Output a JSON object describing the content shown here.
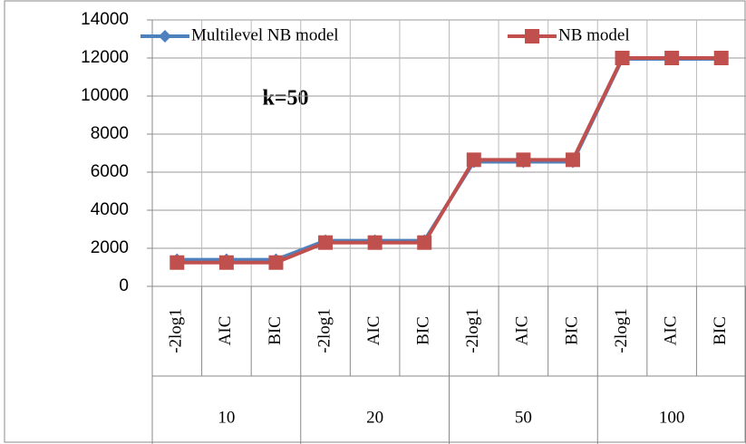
{
  "chart_data": {
    "type": "line",
    "annotation": "k=50",
    "categories": [
      "-2log1",
      "AIC",
      "BIC",
      "-2log1",
      "AIC",
      "BIC",
      "-2log1",
      "AIC",
      "BIC",
      "-2log1",
      "AIC",
      "BIC"
    ],
    "category_groups": [
      "10",
      "20",
      "50",
      "100"
    ],
    "series": [
      {
        "name": "Multilevel  NB model",
        "color": "#4f81bd",
        "marker": "diamond",
        "values": [
          1400,
          1400,
          1400,
          2400,
          2400,
          2400,
          6550,
          6550,
          6550,
          11950,
          11950,
          11950
        ]
      },
      {
        "name": "NB model",
        "color": "#c0504d",
        "marker": "square",
        "values": [
          1250,
          1250,
          1250,
          2300,
          2300,
          2300,
          6650,
          6650,
          6650,
          12000,
          12000,
          12000
        ]
      }
    ],
    "ylim": [
      0,
      14000
    ],
    "yticks": [
      0,
      2000,
      4000,
      6000,
      8000,
      10000,
      12000,
      14000
    ],
    "grid": true
  }
}
